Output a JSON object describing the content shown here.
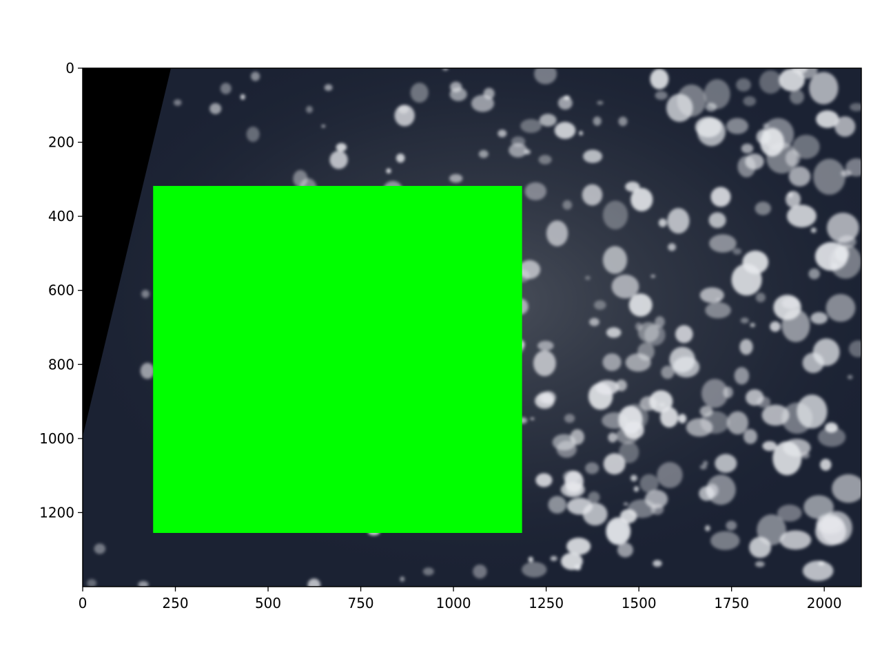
{
  "figure": {
    "x_axis": {
      "range": [
        0,
        2100
      ],
      "ticks": [
        0,
        250,
        500,
        750,
        1000,
        1250,
        1500,
        1750,
        2000
      ],
      "tick_labels": [
        "0",
        "250",
        "500",
        "750",
        "1000",
        "1250",
        "1500",
        "1750",
        "2000"
      ]
    },
    "y_axis": {
      "range": [
        0,
        1400
      ],
      "inverted": true,
      "ticks": [
        0,
        200,
        400,
        600,
        800,
        1000,
        1200
      ],
      "tick_labels": [
        "0",
        "200",
        "400",
        "600",
        "800",
        "1000",
        "1200"
      ]
    },
    "image_content": "satellite view of dark ocean with scattered white cumulus clouds",
    "no_data_wedge": {
      "color": "#000000"
    },
    "masked_region": {
      "color": "#00ff00",
      "x_range": [
        190,
        1185
      ],
      "y_range": [
        318,
        1255
      ]
    },
    "colors": {
      "ocean": "#1b2233",
      "sunglint": "#4a505a",
      "cloud": "#e6e8ec",
      "frame": "#000000"
    }
  }
}
